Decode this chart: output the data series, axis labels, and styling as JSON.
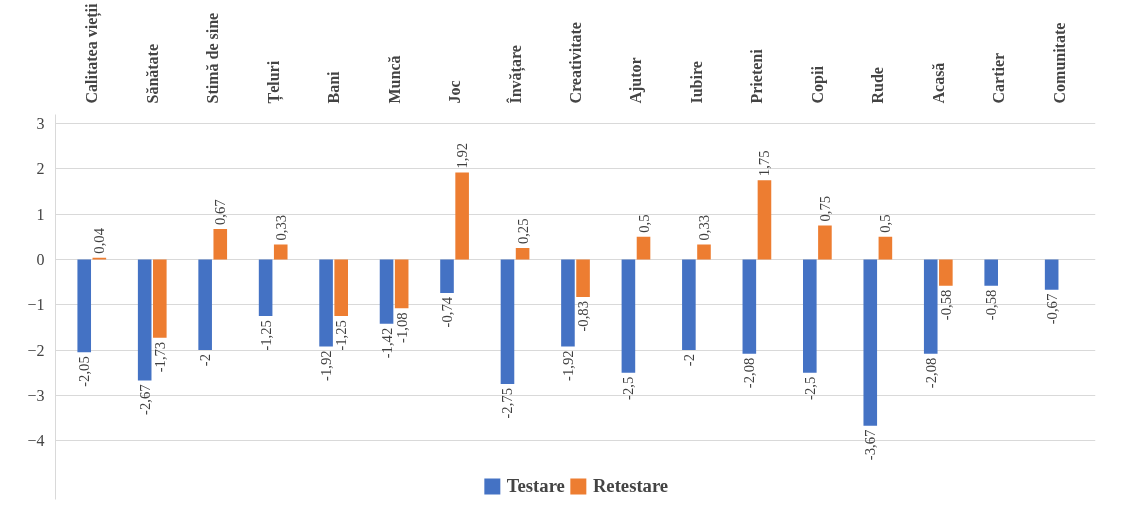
{
  "chart_data": {
    "type": "bar",
    "categories": [
      "Calitatea vieții",
      "Sănătate",
      "Stimă de sine",
      "Țeluri",
      "Bani",
      "Muncă",
      "Joc",
      "Învățare",
      "Creativitate",
      "Ajutor",
      "Iubire",
      "Prieteni",
      "Copii",
      "Rude",
      "Acasă",
      "Cartier",
      "Comunitate"
    ],
    "series": [
      {
        "name": "Testare",
        "color": "#4472c4",
        "values": [
          -2.05,
          -2.67,
          -2,
          -1.25,
          -1.92,
          -1.42,
          -0.74,
          -2.75,
          -1.92,
          -2.5,
          -2,
          -2.08,
          -2.5,
          -3.67,
          -2.08,
          -0.58,
          -0.67
        ],
        "value_labels": [
          "-2,05",
          "-2,67",
          "-2",
          "-1,25",
          "-1,92",
          "-1,42",
          "-0,74",
          "-2,75",
          "-1,92",
          "-2,5",
          "-2",
          "-2,08",
          "-2,5",
          "-3,67",
          "-2,08",
          "-0,58",
          "-0,67"
        ]
      },
      {
        "name": "Retestare",
        "color": "#ed7d31",
        "values": [
          0.04,
          -1.73,
          0.67,
          0.33,
          -1.25,
          -1.08,
          1.92,
          0.25,
          -0.83,
          0.5,
          0.33,
          1.75,
          0.75,
          0.5,
          -0.58,
          null,
          null
        ],
        "value_labels": [
          "0,04",
          "-1,73",
          "0,67",
          "0,33",
          "-1,25",
          "-1,08",
          "1,92",
          "0,25",
          "-0,83",
          "0,5",
          "0,33",
          "1,75",
          "0,75",
          "0,5",
          "-0,58",
          null,
          null
        ]
      }
    ],
    "ylim": [
      -5.3,
      3.2
    ],
    "yticks": [
      -4,
      -3,
      -2,
      -1,
      0,
      1,
      2,
      3
    ],
    "grid": "y",
    "legend": "bottom"
  }
}
